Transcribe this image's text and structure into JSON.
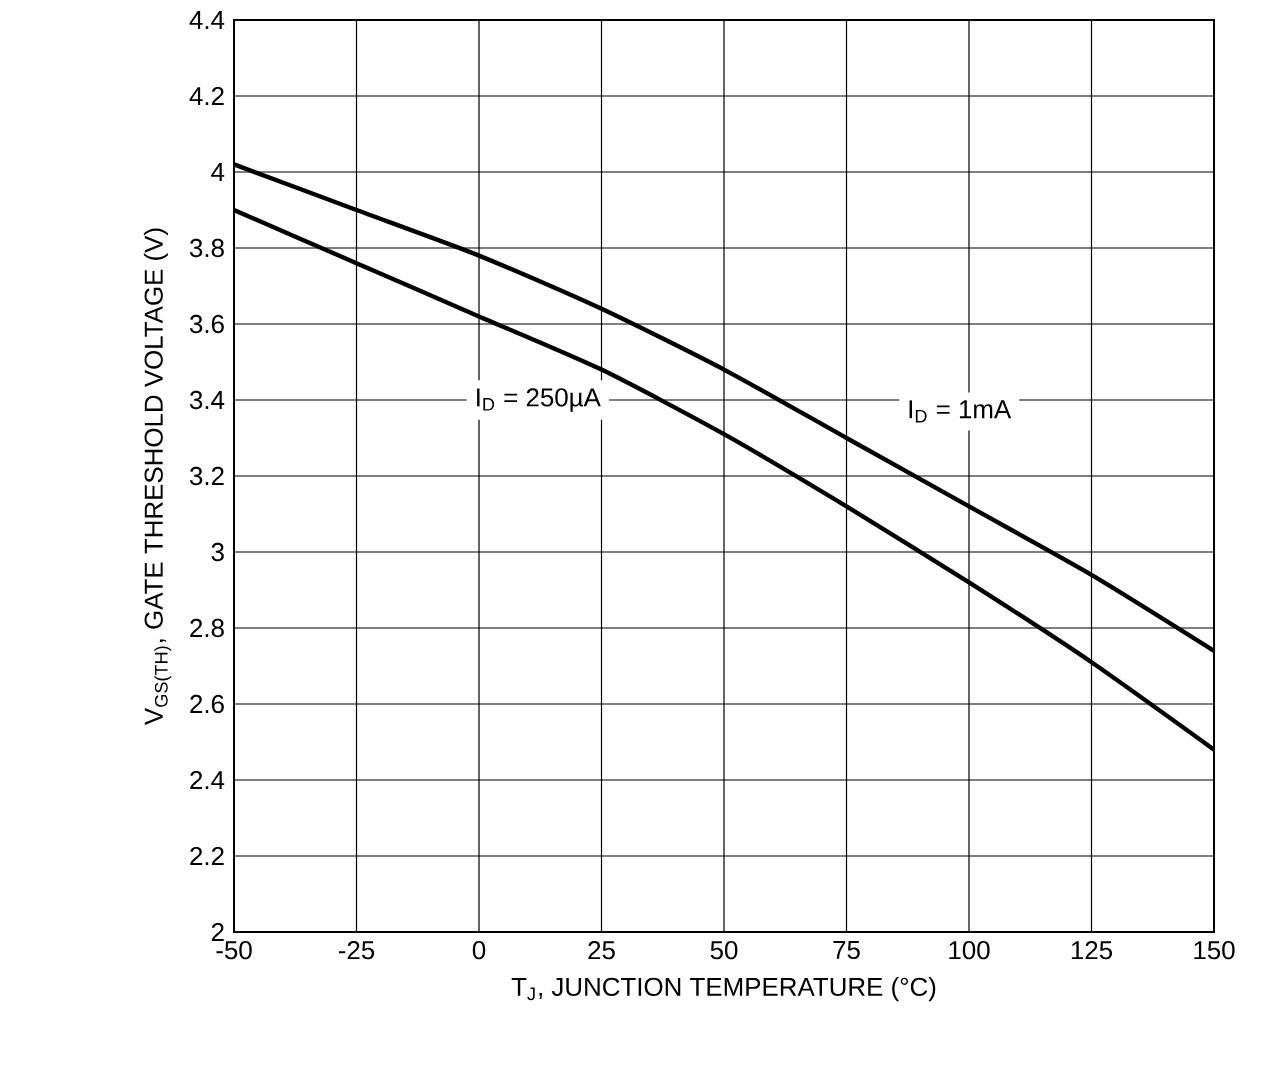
{
  "chart_data": {
    "type": "line",
    "xlabel": "T$_{J}$, JUNCTION TEMPERATURE (°C)",
    "ylabel": "V$_{GS(TH)}$, GATE THRESHOLD VOLTAGE (V)",
    "x": [
      -50,
      -25,
      0,
      25,
      50,
      75,
      100,
      125,
      150
    ],
    "series": [
      {
        "name": "I$_{D}$ = 1mA",
        "color": "#000000",
        "values": [
          4.02,
          3.9,
          3.78,
          3.64,
          3.48,
          3.3,
          3.12,
          2.94,
          2.74
        ]
      },
      {
        "name": "I$_{D}$ = 250µA",
        "color": "#000000",
        "values": [
          3.9,
          3.76,
          3.62,
          3.48,
          3.31,
          3.12,
          2.92,
          2.71,
          2.48
        ]
      }
    ],
    "xlim": [
      -50,
      150
    ],
    "xticks": [
      -50,
      -25,
      0,
      25,
      50,
      75,
      100,
      125,
      150
    ],
    "ylim": [
      2,
      4.4
    ],
    "yticks": [
      2,
      2.2,
      2.4,
      2.6,
      2.8,
      3,
      3.2,
      3.4,
      3.6,
      3.8,
      4,
      4.2,
      4.4
    ],
    "grid": true,
    "legend": false,
    "marker": "none",
    "line_style": "solid"
  }
}
